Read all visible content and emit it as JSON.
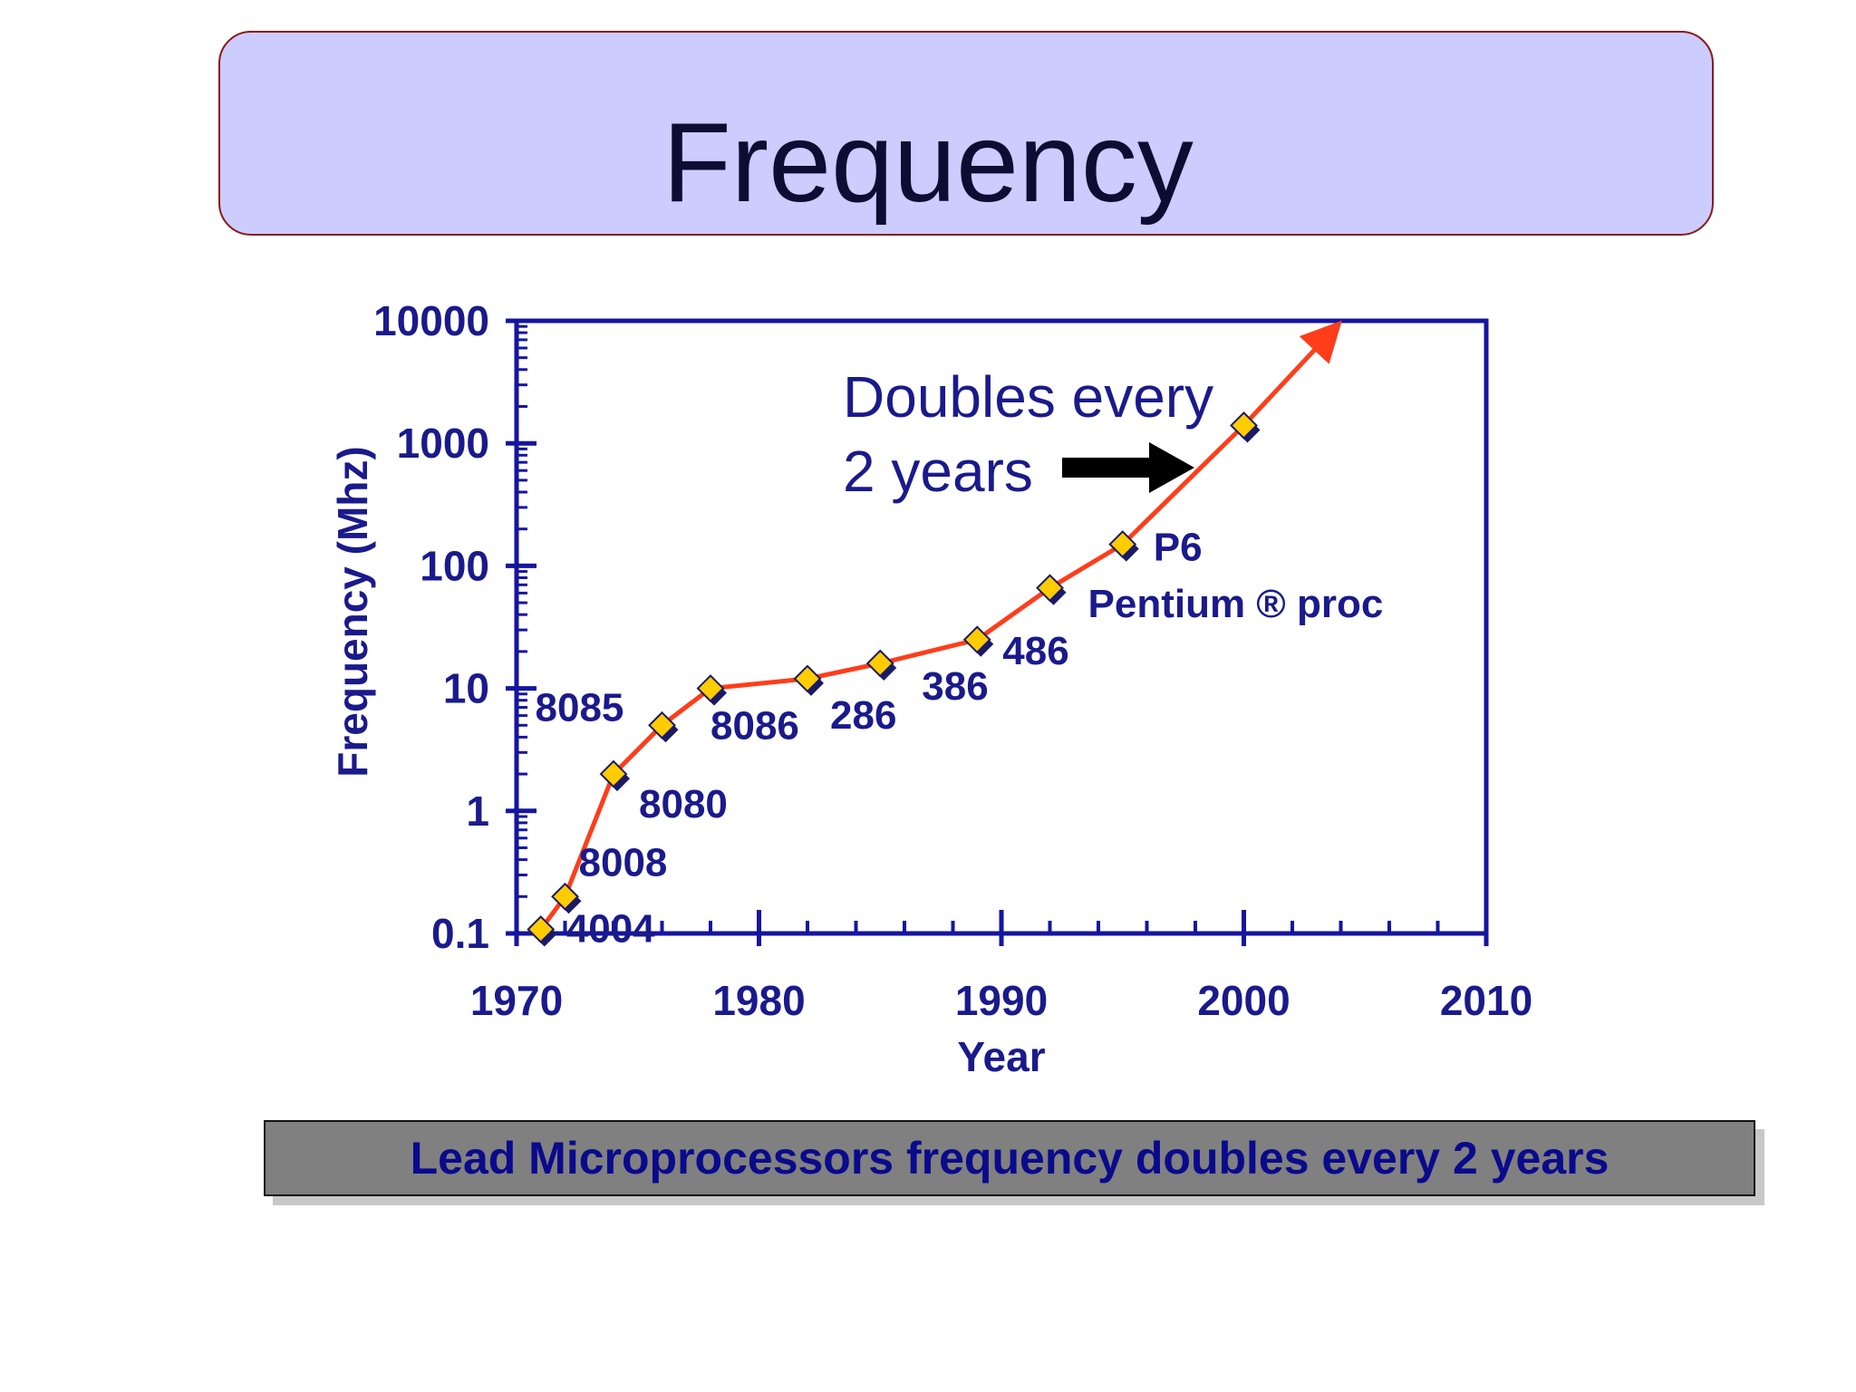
{
  "slide": {
    "title": "Frequency",
    "caption": "Lead Microprocessors frequency doubles every 2 years"
  },
  "colors": {
    "axis": "#1515a0",
    "line": "#ff3d1a",
    "marker_fill": "#ffcc00",
    "marker_shadow": "#1a1a66",
    "label": "#1a1a8c",
    "title_bg": "#ccccff",
    "caption_bg": "#808080"
  },
  "chart_data": {
    "type": "line",
    "title": "",
    "xlabel": "Year",
    "ylabel": "Frequency (Mhz)",
    "xlim": [
      1970,
      2010
    ],
    "ylim": [
      0.1,
      10000
    ],
    "yscale": "log",
    "x_ticks": [
      "1970",
      "1980",
      "1990",
      "2000",
      "2010"
    ],
    "y_ticks": [
      "0.1",
      "1",
      "10",
      "100",
      "1000",
      "10000"
    ],
    "grid": false,
    "series": [
      {
        "name": "",
        "points": [
          {
            "x": 1971,
            "y": 0.108,
            "label": "4004"
          },
          {
            "x": 1972,
            "y": 0.2,
            "label": "8008"
          },
          {
            "x": 1974,
            "y": 2,
            "label": "8080"
          },
          {
            "x": 1976,
            "y": 5,
            "label": "8085"
          },
          {
            "x": 1978,
            "y": 10,
            "label": "8086"
          },
          {
            "x": 1982,
            "y": 12,
            "label": "286"
          },
          {
            "x": 1985,
            "y": 16,
            "label": "386"
          },
          {
            "x": 1989,
            "y": 25,
            "label": "486"
          },
          {
            "x": 1992,
            "y": 66,
            "label": "Pentium ® proc"
          },
          {
            "x": 1995,
            "y": 150,
            "label": "P6"
          },
          {
            "x": 2000,
            "y": 1400,
            "label": ""
          }
        ]
      }
    ],
    "trend_arrow": {
      "from": {
        "x": 2000,
        "y": 1400
      },
      "to": {
        "x": 2004,
        "y": 10000
      }
    },
    "annotation": {
      "lines": [
        "Doubles every",
        "2 years"
      ]
    }
  }
}
